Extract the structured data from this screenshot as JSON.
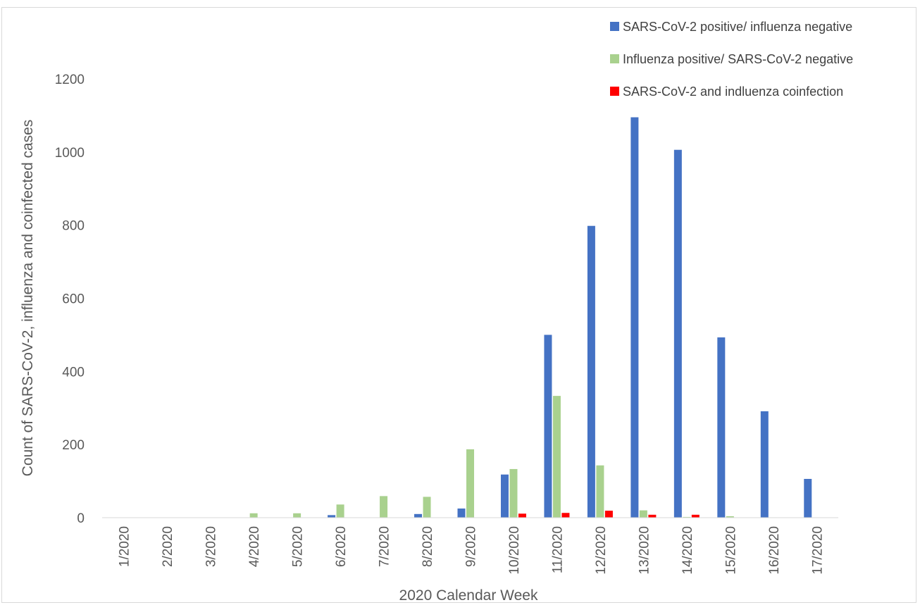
{
  "chart_data": {
    "type": "bar",
    "xlabel": "2020 Calendar  Week",
    "ylabel": "Count of SARS-CoV-2, influenza and coinfected cases",
    "ylim": [
      0,
      1200
    ],
    "yticks": [
      0,
      200,
      400,
      600,
      800,
      1000,
      1200
    ],
    "grid": false,
    "legend_position": "top-right",
    "categories": [
      "1/2020",
      "2/2020",
      "3/2020",
      "4/2020",
      "5/2020",
      "6/2020",
      "7/2020",
      "8/2020",
      "9/2020",
      "10/2020",
      "11/2020",
      "12/2020",
      "13/2020",
      "14/2020",
      "15/2020",
      "16/2020",
      "17/2020"
    ],
    "series": [
      {
        "name": "SARS-CoV-2 positive/ influenza negative",
        "color": "#4472c4",
        "values": [
          0,
          0,
          0,
          0,
          0,
          7,
          0,
          10,
          25,
          118,
          500,
          798,
          1095,
          1006,
          493,
          291,
          106
        ]
      },
      {
        "name": "Influenza positive/ SARS-CoV-2 negative",
        "color": "#a9d18e",
        "values": [
          0,
          0,
          0,
          12,
          12,
          36,
          59,
          57,
          187,
          133,
          333,
          143,
          20,
          2,
          4,
          1,
          0
        ]
      },
      {
        "name": "SARS-CoV-2 and indluenza coinfection",
        "color": "#ff0000",
        "values": [
          0,
          0,
          0,
          0,
          0,
          0,
          0,
          0,
          0,
          11,
          13,
          19,
          8,
          8,
          0,
          0,
          0
        ]
      }
    ]
  }
}
